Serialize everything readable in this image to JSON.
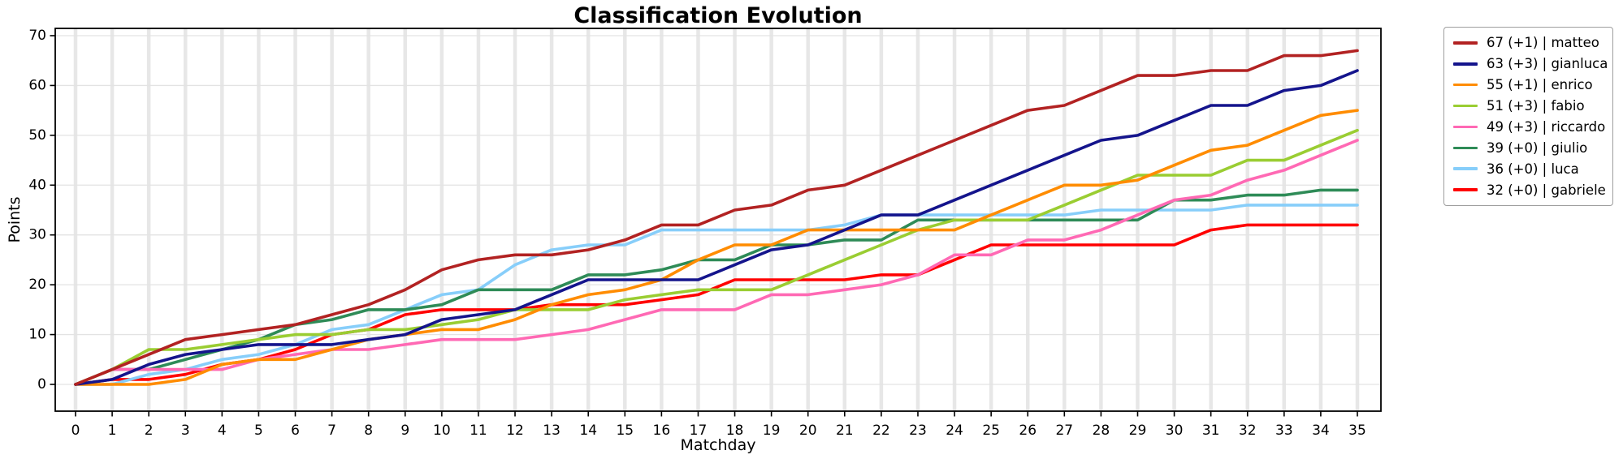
{
  "title": "Classification Evolution",
  "xlabel": "Matchday",
  "ylabel": "Points",
  "legend": {
    "items": [
      {
        "label": "67 (+1) | matteo",
        "color": "#b22222"
      },
      {
        "label": "63 (+3) | gianluca",
        "color": "#14148c"
      },
      {
        "label": "55 (+1) | enrico",
        "color": "#ff8c00"
      },
      {
        "label": "51 (+3) | fabio",
        "color": "#9acd32"
      },
      {
        "label": "49 (+3) | riccardo",
        "color": "#ff69b4"
      },
      {
        "label": "39 (+0) | giulio",
        "color": "#2e8b57"
      },
      {
        "label": "36 (+0) | luca",
        "color": "#87cefa"
      },
      {
        "label": "32 (+0) | gabriele",
        "color": "#ff0000"
      }
    ]
  },
  "chart_data": {
    "type": "line",
    "title": "Classification Evolution",
    "xlabel": "Matchday",
    "ylabel": "Points",
    "x": [
      0,
      1,
      2,
      3,
      4,
      5,
      6,
      7,
      8,
      9,
      10,
      11,
      12,
      13,
      14,
      15,
      16,
      17,
      18,
      19,
      20,
      21,
      22,
      23,
      24,
      25,
      26,
      27,
      28,
      29,
      30,
      31,
      32,
      33,
      34,
      35
    ],
    "yticks": [
      0,
      10,
      20,
      30,
      40,
      50,
      60,
      70
    ],
    "ylim": [
      -5.4,
      71.5
    ],
    "grid": true,
    "legend_position": "right",
    "series": [
      {
        "name": "matteo",
        "color": "#b22222",
        "final": 67,
        "last_gain": 1,
        "values": [
          0,
          3,
          6,
          9,
          10,
          11,
          12,
          14,
          16,
          19,
          23,
          25,
          26,
          26,
          27,
          29,
          32,
          32,
          35,
          36,
          39,
          40,
          43,
          46,
          49,
          52,
          55,
          56,
          59,
          62,
          62,
          63,
          63,
          66,
          66,
          67
        ]
      },
      {
        "name": "gianluca",
        "color": "#14148c",
        "final": 63,
        "last_gain": 3,
        "values": [
          0,
          1,
          4,
          6,
          7,
          8,
          8,
          8,
          9,
          10,
          13,
          14,
          15,
          18,
          21,
          21,
          21,
          21,
          24,
          27,
          28,
          31,
          34,
          34,
          37,
          40,
          43,
          46,
          49,
          50,
          53,
          56,
          56,
          59,
          60,
          63
        ]
      },
      {
        "name": "enrico",
        "color": "#ff8c00",
        "final": 55,
        "last_gain": 1,
        "values": [
          0,
          0,
          0,
          1,
          4,
          5,
          5,
          7,
          9,
          10,
          11,
          11,
          13,
          16,
          18,
          19,
          21,
          25,
          28,
          28,
          31,
          31,
          31,
          31,
          31,
          34,
          37,
          40,
          40,
          41,
          44,
          47,
          48,
          51,
          54,
          55
        ]
      },
      {
        "name": "fabio",
        "color": "#9acd32",
        "final": 51,
        "last_gain": 3,
        "values": [
          0,
          3,
          7,
          7,
          8,
          9,
          10,
          10,
          11,
          11,
          12,
          13,
          15,
          15,
          15,
          17,
          18,
          19,
          19,
          19,
          22,
          25,
          28,
          31,
          33,
          33,
          33,
          36,
          39,
          42,
          42,
          42,
          45,
          45,
          48,
          51
        ]
      },
      {
        "name": "riccardo",
        "color": "#ff69b4",
        "final": 49,
        "last_gain": 3,
        "values": [
          0,
          3,
          3,
          3,
          3,
          5,
          6,
          7,
          7,
          8,
          9,
          9,
          9,
          10,
          11,
          13,
          15,
          15,
          15,
          18,
          18,
          19,
          20,
          22,
          26,
          26,
          29,
          29,
          31,
          34,
          37,
          38,
          41,
          43,
          46,
          49
        ]
      },
      {
        "name": "giulio",
        "color": "#2e8b57",
        "final": 39,
        "last_gain": 0,
        "values": [
          0,
          3,
          3,
          5,
          7,
          9,
          12,
          13,
          15,
          15,
          16,
          19,
          19,
          19,
          22,
          22,
          23,
          25,
          25,
          28,
          28,
          29,
          29,
          33,
          33,
          33,
          33,
          33,
          33,
          33,
          37,
          37,
          38,
          38,
          39,
          39
        ]
      },
      {
        "name": "luca",
        "color": "#87cefa",
        "final": 36,
        "last_gain": 0,
        "values": [
          0,
          0,
          2,
          3,
          5,
          6,
          8,
          11,
          12,
          15,
          18,
          19,
          24,
          27,
          28,
          28,
          31,
          31,
          31,
          31,
          31,
          32,
          34,
          34,
          34,
          34,
          34,
          34,
          35,
          35,
          35,
          35,
          36,
          36,
          36,
          36
        ]
      },
      {
        "name": "gabriele",
        "color": "#ff0000",
        "final": 32,
        "last_gain": 0,
        "values": [
          0,
          1,
          1,
          2,
          4,
          5,
          7,
          10,
          11,
          14,
          15,
          15,
          15,
          16,
          16,
          16,
          17,
          18,
          21,
          21,
          21,
          21,
          22,
          22,
          25,
          28,
          28,
          28,
          28,
          28,
          28,
          31,
          32,
          32,
          32,
          32
        ]
      }
    ]
  }
}
